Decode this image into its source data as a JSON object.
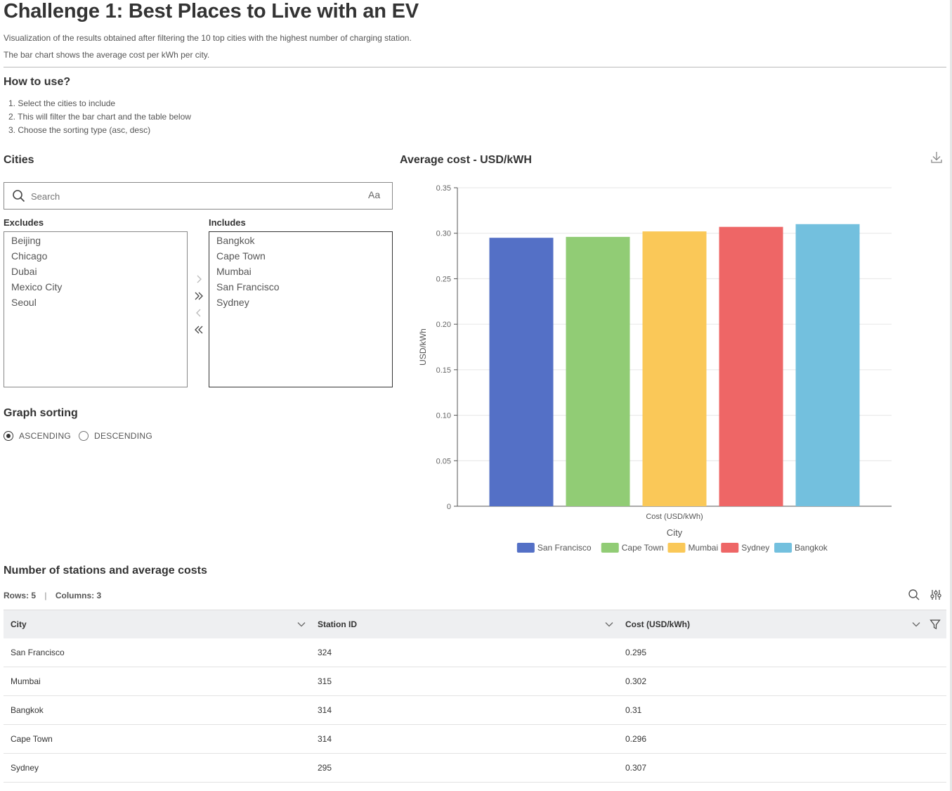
{
  "title": "Challenge 1: Best Places to Live with an EV",
  "description": [
    "Visualization of the results obtained after filtering the 10 top cities with the highest number of charging station.",
    "The bar chart shows the average cost per kWh per city."
  ],
  "how_to": {
    "heading": "How to use?",
    "steps": [
      "1. Select the cities to include",
      "2. This will filter the bar chart and the table below",
      "3. Choose the sorting type (asc, desc)"
    ]
  },
  "cities": {
    "heading": "Cities",
    "search_placeholder": "Search",
    "case_toggle": "Aa",
    "excludes_label": "Excludes",
    "includes_label": "Includes",
    "excludes": [
      "Beijing",
      "Chicago",
      "Dubai",
      "Mexico City",
      "Seoul"
    ],
    "includes": [
      "Bangkok",
      "Cape Town",
      "Mumbai",
      "San Francisco",
      "Sydney"
    ]
  },
  "sorting": {
    "heading": "Graph sorting",
    "options": [
      "ASCENDING",
      "DESCENDING"
    ],
    "selected": "ASCENDING"
  },
  "chart_data": {
    "type": "bar",
    "title": "Average cost - USD/kWH",
    "categories": [
      "Cost (USD/kWh)"
    ],
    "xlabel": "City",
    "ylabel": "USD/kWh",
    "ylim": [
      0,
      0.35
    ],
    "yticks": [
      0,
      0.05,
      0.1,
      0.15,
      0.2,
      0.25,
      0.3,
      0.35
    ],
    "ytick_labels": [
      "0",
      "0.05",
      "0.10",
      "0.15",
      "0.20",
      "0.25",
      "0.30",
      "0.35"
    ],
    "grid": true,
    "legend_position": "bottom",
    "series": [
      {
        "name": "San Francisco",
        "values": [
          0.295
        ],
        "color": "#5470c6"
      },
      {
        "name": "Cape Town",
        "values": [
          0.296
        ],
        "color": "#91cc75"
      },
      {
        "name": "Mumbai",
        "values": [
          0.302
        ],
        "color": "#fac858"
      },
      {
        "name": "Sydney",
        "values": [
          0.307
        ],
        "color": "#ee6666"
      },
      {
        "name": "Bangkok",
        "values": [
          0.31
        ],
        "color": "#73c0de"
      }
    ]
  },
  "table": {
    "heading": "Number of stations and average costs",
    "rows_label": "Rows: 5",
    "cols_label": "Columns: 3",
    "columns": [
      "City",
      "Station ID",
      "Cost (USD/kWh)"
    ],
    "rows": [
      [
        "San Francisco",
        "324",
        "0.295"
      ],
      [
        "Mumbai",
        "315",
        "0.302"
      ],
      [
        "Bangkok",
        "314",
        "0.31"
      ],
      [
        "Cape Town",
        "314",
        "0.296"
      ],
      [
        "Sydney",
        "295",
        "0.307"
      ]
    ]
  }
}
